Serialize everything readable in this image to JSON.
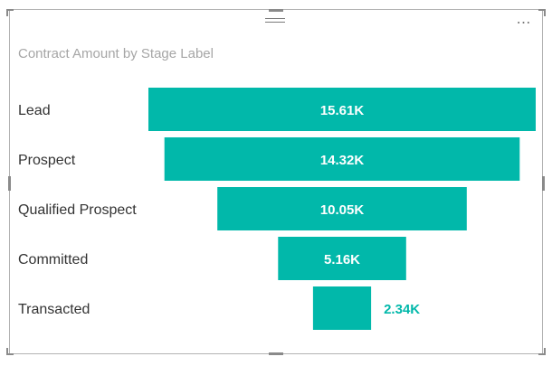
{
  "visual": {
    "menu_glyph": "⋯",
    "drag_icon": "drag-grip-icon",
    "more_icon": "more-options-icon"
  },
  "colors": {
    "bar": "#01b8aa",
    "label_inside": "#ffffff",
    "label_outside": "#01b8aa",
    "title": "#a6a6a6",
    "category_text": "#333333"
  },
  "chart_data": {
    "type": "funnel",
    "title": "Contract Amount by Stage Label",
    "categories": [
      "Lead",
      "Prospect",
      "Qualified Prospect",
      "Committed",
      "Transacted"
    ],
    "values": [
      15.61,
      14.32,
      10.05,
      5.16,
      2.34
    ],
    "value_labels": [
      "15.61K",
      "14.32K",
      "10.05K",
      "5.16K",
      "2.34K"
    ],
    "unit": "K"
  }
}
